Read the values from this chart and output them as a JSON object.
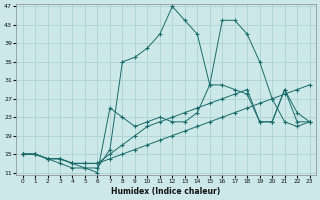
{
  "xlabel": "Humidex (Indice chaleur)",
  "bg_color": "#cce8e8",
  "grid_color": "#aacece",
  "line_color": "#1a6b6b",
  "xlim": [
    -0.5,
    23.5
  ],
  "ylim": [
    11,
    47
  ],
  "yticks": [
    11,
    15,
    19,
    23,
    27,
    31,
    35,
    39,
    43,
    47
  ],
  "xticks": [
    0,
    1,
    2,
    3,
    4,
    5,
    6,
    7,
    8,
    9,
    10,
    11,
    12,
    13,
    14,
    15,
    16,
    17,
    18,
    19,
    20,
    21,
    22,
    23
  ],
  "series": [
    {
      "x": [
        0,
        1,
        2,
        3,
        4,
        5,
        6,
        7,
        8,
        9,
        10,
        11,
        12,
        13,
        14,
        15,
        16,
        17,
        18,
        19,
        20,
        21,
        22,
        23
      ],
      "y": [
        15,
        15,
        14,
        14,
        13,
        13,
        13,
        14,
        15,
        16,
        17,
        18,
        19,
        20,
        21,
        22,
        23,
        24,
        25,
        26,
        27,
        28,
        29,
        30
      ]
    },
    {
      "x": [
        0,
        1,
        2,
        3,
        4,
        5,
        6,
        7,
        8,
        9,
        10,
        11,
        12,
        13,
        14,
        15,
        16,
        17,
        18,
        19,
        20,
        21,
        22,
        23
      ],
      "y": [
        15,
        15,
        14,
        14,
        13,
        13,
        13,
        15,
        17,
        19,
        21,
        22,
        23,
        24,
        25,
        26,
        27,
        28,
        29,
        22,
        22,
        29,
        22,
        22
      ]
    },
    {
      "x": [
        0,
        1,
        2,
        3,
        4,
        5,
        6,
        7,
        8,
        9,
        10,
        11,
        12,
        13,
        14,
        15,
        16,
        17,
        18,
        19,
        20,
        21,
        22,
        23
      ],
      "y": [
        15,
        15,
        14,
        13,
        12,
        12,
        11,
        25,
        23,
        21,
        22,
        23,
        22,
        22,
        24,
        30,
        30,
        29,
        28,
        22,
        22,
        29,
        24,
        22
      ]
    },
    {
      "x": [
        0,
        1,
        2,
        3,
        4,
        5,
        6,
        7,
        8,
        9,
        10,
        11,
        12,
        13,
        14,
        15,
        16,
        17,
        18,
        19,
        20,
        21,
        22,
        23
      ],
      "y": [
        15,
        15,
        14,
        14,
        13,
        12,
        12,
        16,
        35,
        36,
        38,
        41,
        47,
        44,
        41,
        30,
        44,
        44,
        41,
        35,
        27,
        22,
        21,
        22
      ]
    }
  ]
}
